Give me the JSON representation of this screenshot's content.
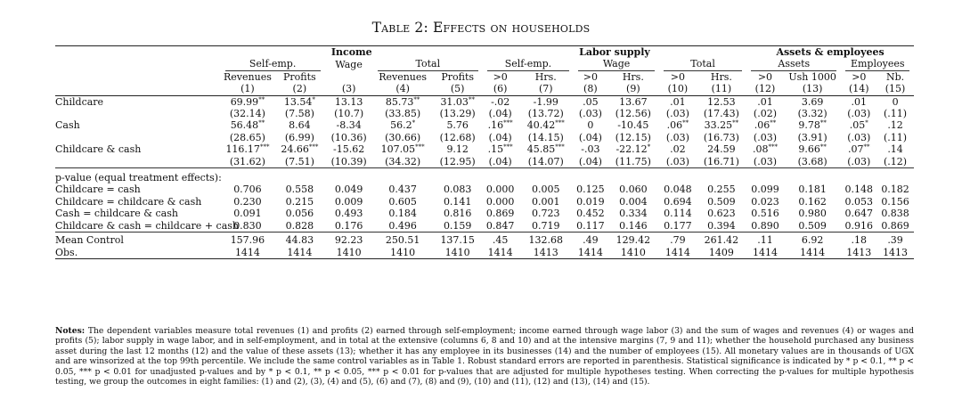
{
  "title": "Table 2: Effects on households",
  "header": {
    "groups": [
      {
        "label": "Income",
        "span": 5
      },
      {
        "label": "Labor supply",
        "span": 6
      },
      {
        "label": "Assets & employees",
        "span": 4
      }
    ],
    "subgroups": [
      {
        "label": "Self-emp.",
        "span": 2,
        "underline": true
      },
      {
        "label": "Wage",
        "span": 1,
        "underline": false
      },
      {
        "label": "Total",
        "span": 2,
        "underline": true
      },
      {
        "label": "Self-emp.",
        "span": 2,
        "underline": true
      },
      {
        "label": "Wage",
        "span": 2,
        "underline": true
      },
      {
        "label": "Total",
        "span": 2,
        "underline": true
      },
      {
        "label": "Assets",
        "span": 2,
        "underline": true
      },
      {
        "label": "Employees",
        "span": 2,
        "underline": true
      }
    ],
    "variables": [
      "Revenues",
      "Profits",
      "",
      "Revenues",
      "Profits",
      ">0",
      "Hrs.",
      ">0",
      "Hrs.",
      ">0",
      "Hrs.",
      ">0",
      "Ush 1000",
      ">0",
      "Nb."
    ],
    "numbers": [
      "(1)",
      "(2)",
      "(3)",
      "(4)",
      "(5)",
      "(6)",
      "(7)",
      "(8)",
      "(9)",
      "(10)",
      "(11)",
      "(12)",
      "(13)",
      "(14)",
      "(15)"
    ]
  },
  "treatments": [
    {
      "label": "Childcare",
      "coef": [
        {
          "v": "69.99",
          "s": "**"
        },
        {
          "v": "13.54",
          "s": "*"
        },
        {
          "v": "13.13",
          "s": ""
        },
        {
          "v": "85.73",
          "s": "**"
        },
        {
          "v": "31.03",
          "s": "**"
        },
        {
          "v": "-.02",
          "s": ""
        },
        {
          "v": "-1.99",
          "s": ""
        },
        {
          "v": ".05",
          "s": ""
        },
        {
          "v": "13.67",
          "s": ""
        },
        {
          "v": ".01",
          "s": ""
        },
        {
          "v": "12.53",
          "s": ""
        },
        {
          "v": ".01",
          "s": ""
        },
        {
          "v": "3.69",
          "s": ""
        },
        {
          "v": ".01",
          "s": ""
        },
        {
          "v": "0",
          "s": ""
        }
      ],
      "se": [
        "(32.14)",
        "(7.58)",
        "(10.7)",
        "(33.85)",
        "(13.29)",
        "(.04)",
        "(13.72)",
        "(.03)",
        "(12.56)",
        "(.03)",
        "(17.43)",
        "(.02)",
        "(3.32)",
        "(.03)",
        "(.11)"
      ]
    },
    {
      "label": "Cash",
      "coef": [
        {
          "v": "56.48",
          "s": "**"
        },
        {
          "v": "8.64",
          "s": ""
        },
        {
          "v": "-8.34",
          "s": ""
        },
        {
          "v": "56.2",
          "s": "*"
        },
        {
          "v": "5.76",
          "s": ""
        },
        {
          "v": ".16",
          "s": "***"
        },
        {
          "v": "40.42",
          "s": "***"
        },
        {
          "v": "0",
          "s": ""
        },
        {
          "v": "-10.45",
          "s": ""
        },
        {
          "v": ".06",
          "s": "**"
        },
        {
          "v": "33.25",
          "s": "**"
        },
        {
          "v": ".06",
          "s": "**"
        },
        {
          "v": "9.78",
          "s": "**"
        },
        {
          "v": ".05",
          "s": "*"
        },
        {
          "v": ".12",
          "s": ""
        }
      ],
      "se": [
        "(28.65)",
        "(6.99)",
        "(10.36)",
        "(30.66)",
        "(12.68)",
        "(.04)",
        "(14.15)",
        "(.04)",
        "(12.15)",
        "(.03)",
        "(16.73)",
        "(.03)",
        "(3.91)",
        "(.03)",
        "(.11)"
      ]
    },
    {
      "label": "Childcare & cash",
      "coef": [
        {
          "v": "116.17",
          "s": "***"
        },
        {
          "v": "24.66",
          "s": "***"
        },
        {
          "v": "-15.62",
          "s": ""
        },
        {
          "v": "107.05",
          "s": "***"
        },
        {
          "v": "9.12",
          "s": ""
        },
        {
          "v": ".15",
          "s": "***"
        },
        {
          "v": "45.85",
          "s": "***"
        },
        {
          "v": "-.03",
          "s": ""
        },
        {
          "v": "-22.12",
          "s": "*"
        },
        {
          "v": ".02",
          "s": ""
        },
        {
          "v": "24.59",
          "s": ""
        },
        {
          "v": ".08",
          "s": "***"
        },
        {
          "v": "9.66",
          "s": "**"
        },
        {
          "v": ".07",
          "s": "**"
        },
        {
          "v": ".14",
          "s": ""
        }
      ],
      "se": [
        "(31.62)",
        "(7.51)",
        "(10.39)",
        "(34.32)",
        "(12.95)",
        "(.04)",
        "(14.07)",
        "(.04)",
        "(11.75)",
        "(.03)",
        "(16.71)",
        "(.03)",
        "(3.68)",
        "(.03)",
        "(.12)"
      ]
    }
  ],
  "pvalues": {
    "heading": "p-value (equal treatment effects):",
    "rows": [
      {
        "label": "Childcare = cash",
        "values": [
          "0.706",
          "0.558",
          "0.049",
          "0.437",
          "0.083",
          "0.000",
          "0.005",
          "0.125",
          "0.060",
          "0.048",
          "0.255",
          "0.099",
          "0.181",
          "0.148",
          "0.182"
        ]
      },
      {
        "label": "Childcare = childcare & cash",
        "values": [
          "0.230",
          "0.215",
          "0.009",
          "0.605",
          "0.141",
          "0.000",
          "0.001",
          "0.019",
          "0.004",
          "0.694",
          "0.509",
          "0.023",
          "0.162",
          "0.053",
          "0.156"
        ]
      },
      {
        "label": "Cash = childcare & cash",
        "values": [
          "0.091",
          "0.056",
          "0.493",
          "0.184",
          "0.816",
          "0.869",
          "0.723",
          "0.452",
          "0.334",
          "0.114",
          "0.623",
          "0.516",
          "0.980",
          "0.647",
          "0.838"
        ]
      },
      {
        "label": "Childcare & cash = childcare + cash",
        "values": [
          "0.830",
          "0.828",
          "0.176",
          "0.496",
          "0.159",
          "0.847",
          "0.719",
          "0.117",
          "0.146",
          "0.177",
          "0.394",
          "0.890",
          "0.509",
          "0.916",
          "0.869"
        ]
      }
    ]
  },
  "footer_rows": [
    {
      "label": "Mean Control",
      "values": [
        "157.96",
        "44.83",
        "92.23",
        "250.51",
        "137.15",
        ".45",
        "132.68",
        ".49",
        "129.42",
        ".79",
        "261.42",
        ".11",
        "6.92",
        ".18",
        ".39"
      ]
    },
    {
      "label": "Obs.",
      "values": [
        "1414",
        "1414",
        "1410",
        "1410",
        "1410",
        "1414",
        "1413",
        "1414",
        "1410",
        "1414",
        "1409",
        "1414",
        "1414",
        "1413",
        "1413"
      ]
    }
  ],
  "notes": {
    "label": "Notes:",
    "text": "The dependent variables measure total revenues (1) and profits (2) earned through self-employment; income earned through wage labor (3) and the sum of wages and revenues (4) or wages and profits (5); labor supply in wage labor, and in self-employment, and in total at the extensive (columns 6, 8 and 10) and at the intensive margins (7, 9 and 11); whether the household purchased any business asset during the last 12 months (12) and the value of these assets (13); whether it has any employee in its businesses (14) and the number of employees (15). All monetary values are in thousands of UGX and are winsorized at the top 99th percentile. We include the same control variables as in Table 1. Robust standard errors are reported in parenthesis. Statistical significance is indicated by * p < 0.1, ** p < 0.05, *** p < 0.01 for unadjusted p-values and by * p < 0.1, ** p < 0.05, *** p < 0.01 for p-values that are adjusted for multiple hypotheses testing. When correcting the p-values for multiple hypothesis testing, we group the outcomes in eight families: (1) and (2), (3), (4) and (5), (6) and (7), (8) and (9), (10) and (11), (12) and (13), (14) and (15)."
  }
}
